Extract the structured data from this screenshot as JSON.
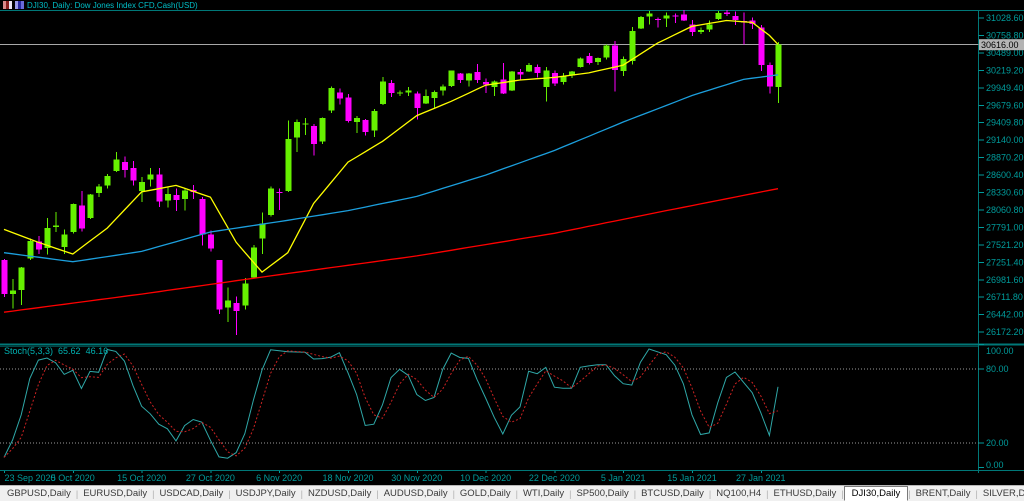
{
  "window": {
    "title": "DJI30, Daily:  Dow Jones Index CFD,Cash(USD)"
  },
  "colors": {
    "bg": "#000000",
    "bull": "#66f000",
    "bear": "#ff00ff",
    "ma_fast": "#ffff00",
    "ma_mid": "#1c9fdd",
    "ma_slow": "#ff0000",
    "frame": "#007878",
    "axis_text": "#009b9b",
    "stoch_k": "#2fa8a8",
    "stoch_d": "#cc2222",
    "level": "#9a9a9a",
    "price_line": "#a8a8a8",
    "price_tag_bg": "#b4b4b4",
    "tabbar_bg": "#f0f0f0"
  },
  "chart_data": {
    "type": "candlestick",
    "symbol": "DJI30",
    "timeframe": "Daily",
    "price_axis": {
      "max_value": 31028.6,
      "min_value": 26172.2,
      "step_value": 269.8,
      "ticks": [
        "31028.60",
        "30758.80",
        "30489.00",
        "30219.20",
        "29949.40",
        "29679.60",
        "29409.80",
        "29140.00",
        "28870.20",
        "28600.40",
        "28330.60",
        "28060.80",
        "27791.00",
        "27521.20",
        "27251.40",
        "26981.60",
        "26711.80",
        "26442.00",
        "26172.20"
      ],
      "current": "30616.00",
      "current_value": 30616.0
    },
    "x_axis": {
      "labels": [
        "23 Sep 2020",
        "5 Oct 2020",
        "15 Oct 2020",
        "27 Oct 2020",
        "6 Nov 2020",
        "18 Nov 2020",
        "30 Nov 2020",
        "10 Dec 2020",
        "22 Dec 2020",
        "5 Jan 2021",
        "15 Jan 2021",
        "27 Jan 2021"
      ],
      "indices": [
        0,
        8,
        16,
        24,
        32,
        40,
        48,
        56,
        64,
        72,
        80,
        88
      ]
    },
    "candles": [
      [
        27288,
        27299,
        26714,
        26763
      ],
      [
        26760,
        26995,
        26537,
        26815
      ],
      [
        26820,
        27180,
        26590,
        27174
      ],
      [
        27310,
        27620,
        27290,
        27584
      ],
      [
        27570,
        27660,
        27380,
        27452
      ],
      [
        27470,
        27940,
        27370,
        27782
      ],
      [
        27800,
        28030,
        27720,
        27817
      ],
      [
        27490,
        27760,
        27382,
        27683
      ],
      [
        27720,
        28160,
        27700,
        28149
      ],
      [
        28130,
        28354,
        27730,
        27773
      ],
      [
        27940,
        28310,
        27920,
        28303
      ],
      [
        28320,
        28465,
        28260,
        28425
      ],
      [
        28440,
        28620,
        28395,
        28587
      ],
      [
        28660,
        28960,
        28650,
        28838
      ],
      [
        28800,
        28890,
        28560,
        28680
      ],
      [
        28710,
        28820,
        28440,
        28514
      ],
      [
        28350,
        28570,
        28180,
        28494
      ],
      [
        28530,
        28710,
        28420,
        28606
      ],
      [
        28610,
        28710,
        28110,
        28195
      ],
      [
        28205,
        28420,
        28100,
        28309
      ],
      [
        28290,
        28390,
        28042,
        28211
      ],
      [
        28230,
        28400,
        28050,
        28363
      ],
      [
        28370,
        28450,
        28230,
        28336
      ],
      [
        28230,
        28260,
        27510,
        27685
      ],
      [
        27680,
        27740,
        27420,
        27463
      ],
      [
        27290,
        27290,
        26450,
        26520
      ],
      [
        26550,
        26860,
        26330,
        26659
      ],
      [
        26620,
        26720,
        26125,
        26502
      ],
      [
        26580,
        27010,
        26520,
        26925
      ],
      [
        27020,
        27520,
        27000,
        27480
      ],
      [
        27620,
        28020,
        27380,
        27848
      ],
      [
        27980,
        28420,
        27960,
        28390
      ],
      [
        28340,
        28390,
        28060,
        28323
      ],
      [
        28350,
        29440,
        28340,
        29158
      ],
      [
        29180,
        29460,
        28960,
        29420
      ],
      [
        29380,
        29480,
        29220,
        29397
      ],
      [
        29360,
        29390,
        28900,
        29080
      ],
      [
        29120,
        29490,
        29080,
        29480
      ],
      [
        29600,
        29970,
        29560,
        29950
      ],
      [
        29880,
        29940,
        29690,
        29783
      ],
      [
        29800,
        29850,
        29410,
        29438
      ],
      [
        29420,
        29510,
        29250,
        29483
      ],
      [
        29450,
        29470,
        29210,
        29263
      ],
      [
        29290,
        29620,
        29190,
        29591
      ],
      [
        29700,
        30120,
        29680,
        30046
      ],
      [
        30020,
        30070,
        29810,
        29872
      ],
      [
        29870,
        29910,
        29820,
        29878
      ],
      [
        29880,
        29960,
        29820,
        29910
      ],
      [
        29860,
        29890,
        29463,
        29638
      ],
      [
        29710,
        29920,
        29700,
        29824
      ],
      [
        29790,
        29910,
        29640,
        29884
      ],
      [
        29910,
        30000,
        29830,
        29970
      ],
      [
        29980,
        30220,
        29960,
        30218
      ],
      [
        30170,
        30180,
        30020,
        30069
      ],
      [
        30060,
        30180,
        29970,
        30174
      ],
      [
        30190,
        30320,
        30020,
        30069
      ],
      [
        30040,
        30090,
        29870,
        29999
      ],
      [
        29960,
        30060,
        29820,
        30046
      ],
      [
        30080,
        30330,
        29850,
        29861
      ],
      [
        29910,
        30210,
        29900,
        30199
      ],
      [
        30190,
        30240,
        30060,
        30154
      ],
      [
        30200,
        30330,
        30190,
        30303
      ],
      [
        30270,
        30310,
        30110,
        30179
      ],
      [
        29960,
        30270,
        29740,
        30216
      ],
      [
        30180,
        30220,
        29980,
        30015
      ],
      [
        30040,
        30180,
        30000,
        30130
      ],
      [
        30140,
        30210,
        30100,
        30199
      ],
      [
        30270,
        30420,
        30260,
        30403
      ],
      [
        30440,
        30490,
        30310,
        30335
      ],
      [
        30350,
        30420,
        30300,
        30409
      ],
      [
        30420,
        30620,
        30390,
        30606
      ],
      [
        30600,
        30670,
        29890,
        30223
      ],
      [
        30210,
        30430,
        30130,
        30391
      ],
      [
        30360,
        30890,
        30310,
        30829
      ],
      [
        30870,
        31060,
        30860,
        31041
      ],
      [
        31050,
        31140,
        30930,
        31097
      ],
      [
        31010,
        31040,
        30880,
        31008
      ],
      [
        31020,
        31110,
        30890,
        31068
      ],
      [
        31070,
        31100,
        30950,
        31060
      ],
      [
        31080,
        31150,
        30980,
        30991
      ],
      [
        30930,
        31000,
        30750,
        30814
      ],
      [
        30810,
        30880,
        30780,
        30845
      ],
      [
        30850,
        30990,
        30810,
        30930
      ],
      [
        31010,
        31140,
        31000,
        31108
      ],
      [
        31110,
        31150,
        31060,
        31090
      ],
      [
        31060,
        31130,
        30920,
        30996
      ],
      [
        30980,
        31110,
        30620,
        30960
      ],
      [
        30990,
        31040,
        30860,
        30937
      ],
      [
        30880,
        30920,
        30210,
        30303
      ],
      [
        30300,
        30340,
        29860,
        29973
      ],
      [
        29960,
        30660,
        29714,
        30616
      ]
    ],
    "overlays": [
      {
        "name": "ma-fast",
        "color_key": "ma_fast",
        "points": [
          [
            0,
            27760
          ],
          [
            4,
            27560
          ],
          [
            8,
            27380
          ],
          [
            12,
            27780
          ],
          [
            16,
            28340
          ],
          [
            20,
            28440
          ],
          [
            24,
            28260
          ],
          [
            27,
            27560
          ],
          [
            30,
            27100
          ],
          [
            33,
            27400
          ],
          [
            36,
            28160
          ],
          [
            40,
            28800
          ],
          [
            44,
            29120
          ],
          [
            48,
            29520
          ],
          [
            52,
            29740
          ],
          [
            56,
            29990
          ],
          [
            60,
            30070
          ],
          [
            64,
            30110
          ],
          [
            68,
            30180
          ],
          [
            72,
            30300
          ],
          [
            76,
            30640
          ],
          [
            80,
            30900
          ],
          [
            84,
            30990
          ],
          [
            87,
            30960
          ],
          [
            89,
            30760
          ],
          [
            90,
            30620
          ]
        ]
      },
      {
        "name": "ma-mid",
        "color_key": "ma_mid",
        "points": [
          [
            0,
            27400
          ],
          [
            8,
            27260
          ],
          [
            16,
            27420
          ],
          [
            24,
            27720
          ],
          [
            32,
            27880
          ],
          [
            40,
            28050
          ],
          [
            48,
            28270
          ],
          [
            56,
            28600
          ],
          [
            64,
            28980
          ],
          [
            72,
            29420
          ],
          [
            80,
            29830
          ],
          [
            86,
            30080
          ],
          [
            90,
            30150
          ]
        ]
      },
      {
        "name": "ma-slow",
        "color_key": "ma_slow",
        "points": [
          [
            0,
            26480
          ],
          [
            16,
            26760
          ],
          [
            32,
            27060
          ],
          [
            48,
            27350
          ],
          [
            64,
            27700
          ],
          [
            77,
            28050
          ],
          [
            90,
            28390
          ]
        ]
      }
    ],
    "indicator": {
      "name": "Stoch(5,3,3)",
      "k": "65.62",
      "d": "46.16",
      "k_period": 5,
      "slowing": 3,
      "d_period": 3,
      "levels": [
        80,
        20
      ],
      "axis_labels": [
        "100.00",
        "80.00",
        "20.00",
        "0.00"
      ]
    }
  },
  "tabs": {
    "items": [
      "GBPUSD,Daily",
      "EURUSD,Daily",
      "USDCAD,Daily",
      "USDJPY,Daily",
      "NZDUSD,Daily",
      "AUDUSD,Daily",
      "GOLD,Daily",
      "WTI,Daily",
      "SP500,Daily",
      "BTCUSD,Daily",
      "NQ100,H4",
      "ETHUSD,Daily",
      "DJI30,Daily",
      "BRENT,Daily",
      "SILVER,Daily"
    ],
    "active_index": 12,
    "scroll_left": "◂",
    "scroll_right": "▸"
  }
}
